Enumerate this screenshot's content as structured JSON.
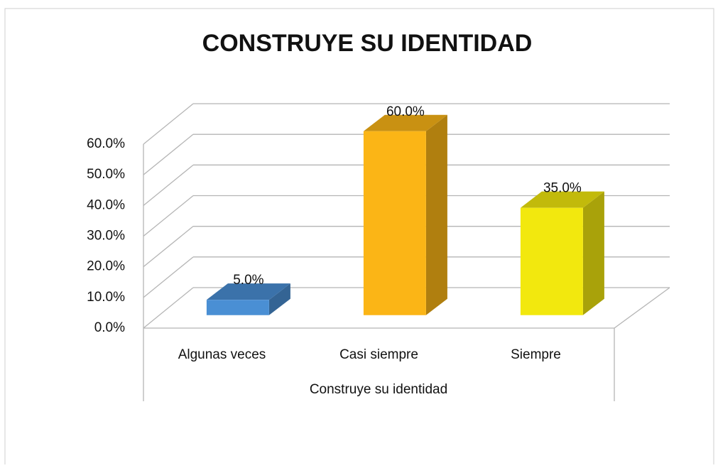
{
  "chart_data": {
    "type": "bar3d",
    "title": "CONSTRUYE SU IDENTIDAD",
    "x_label": "Construye su identidad",
    "categories": [
      "Algunas veces",
      "Casi siempre",
      "Siempre"
    ],
    "values": [
      5,
      60,
      35
    ],
    "value_labels": [
      "5.0%",
      "60.0%",
      "35.0%"
    ],
    "colors": [
      "#4a8fd4",
      "#fbb516",
      "#f2e80e"
    ],
    "ylim": [
      0,
      60
    ],
    "yticks": [
      {
        "value": 0,
        "label": "0.0%"
      },
      {
        "value": 10,
        "label": "10.0%"
      },
      {
        "value": 20,
        "label": "20.0%"
      },
      {
        "value": 30,
        "label": "30.0%"
      },
      {
        "value": 40,
        "label": "40.0%"
      },
      {
        "value": 50,
        "label": "50.0%"
      },
      {
        "value": 60,
        "label": "60.0%"
      }
    ],
    "grid": true
  }
}
